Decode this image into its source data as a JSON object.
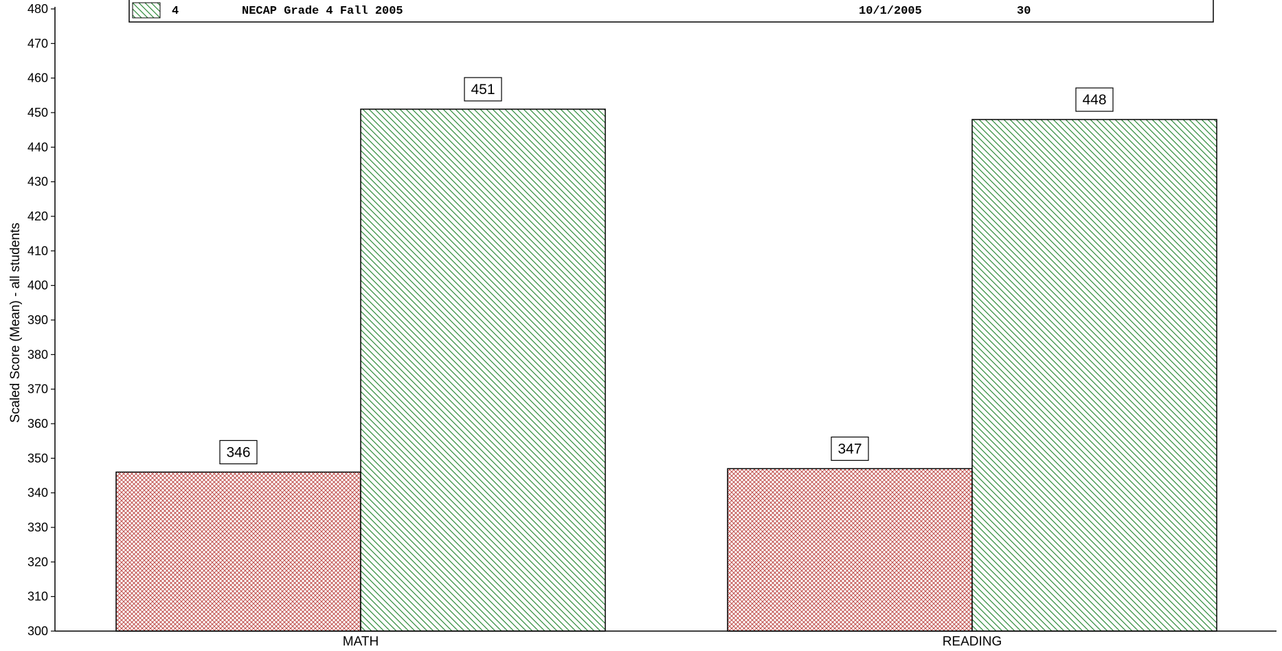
{
  "chart_data": {
    "type": "bar",
    "title": "",
    "xlabel": "",
    "ylabel": "Scaled Score (Mean) - all students",
    "ylim": [
      300,
      480
    ],
    "yticks": [
      300,
      310,
      320,
      330,
      340,
      350,
      360,
      370,
      380,
      390,
      400,
      410,
      420,
      430,
      440,
      450,
      460,
      470,
      480
    ],
    "categories": [
      "MATH",
      "READING"
    ],
    "series": [
      {
        "values": [
          346,
          347
        ],
        "color": "#c0504d",
        "pattern": "crosshatch"
      },
      {
        "values": [
          451,
          448
        ],
        "color": "#2e8b3a",
        "pattern": "diagonal"
      }
    ],
    "data_labels": [
      [
        "346",
        "347"
      ],
      [
        "451",
        "448"
      ]
    ],
    "legend": {
      "position": "top",
      "visible_entry": {
        "grade": "4",
        "test_name": "NECAP Grade 4 Fall 2005",
        "date": "10/1/2005",
        "count": "30",
        "pattern": "diagonal",
        "color": "#2e8b3a"
      }
    },
    "grid": false
  }
}
